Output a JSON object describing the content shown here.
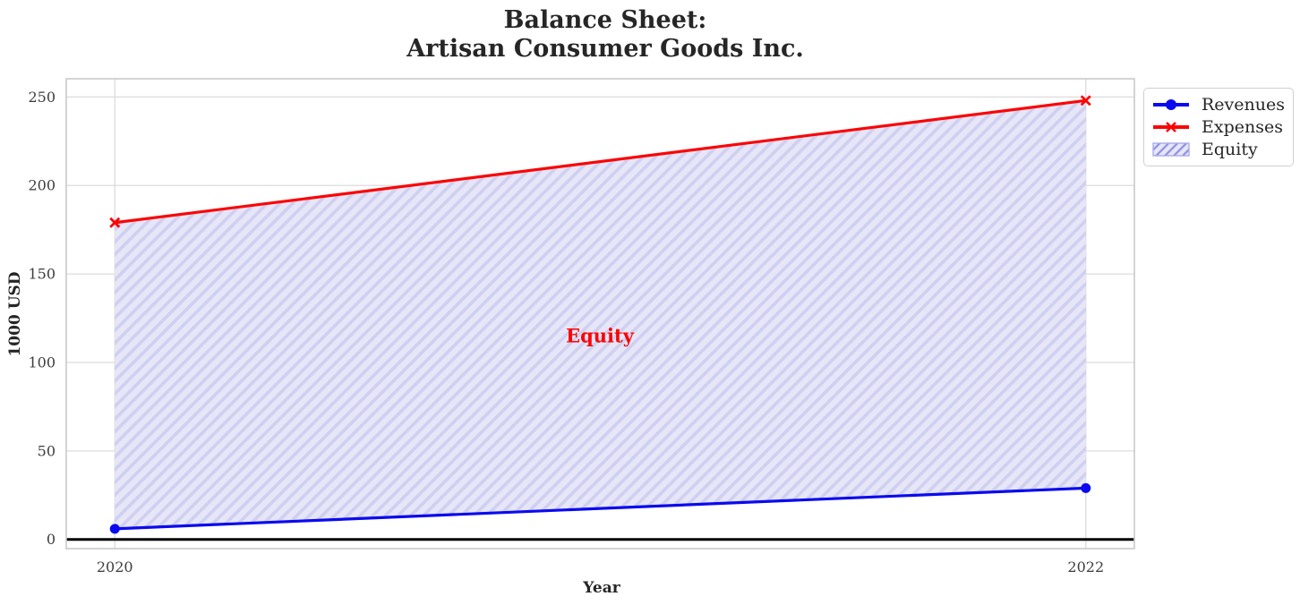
{
  "chart_data": {
    "type": "line",
    "title": "Balance Sheet:\nArtisan Consumer Goods Inc.",
    "xlabel": "Year",
    "ylabel": "1000 USD",
    "x": [
      2020,
      2022
    ],
    "xtick_labels": [
      "2020",
      "2022"
    ],
    "yticks": [
      0,
      50,
      100,
      150,
      200,
      250
    ],
    "xlim": [
      2019.9,
      2022.1
    ],
    "ylim": [
      -5.2,
      260.3
    ],
    "grid": true,
    "series": [
      {
        "name": "Revenues",
        "values": [
          6,
          29
        ],
        "color": "#0a0af0",
        "marker": "circle"
      },
      {
        "name": "Expenses",
        "values": [
          179,
          248
        ],
        "color": "#fb0505",
        "marker": "x"
      }
    ],
    "fill_between": {
      "label": "Equity",
      "between": [
        "Revenues",
        "Expenses"
      ],
      "fill_color": "#e6e6f8",
      "hatch_color": "#cfcff0",
      "legend_hatch_color": "#8f8fe2",
      "edge_color": "#aaaaec"
    },
    "baseline_y": 0,
    "baseline_color": "#000000",
    "annotation": {
      "text": "Equity",
      "color": "#fb0505"
    },
    "legend": {
      "entries": [
        "Revenues",
        "Expenses",
        "Equity"
      ],
      "position": "upper-right-outside"
    }
  }
}
